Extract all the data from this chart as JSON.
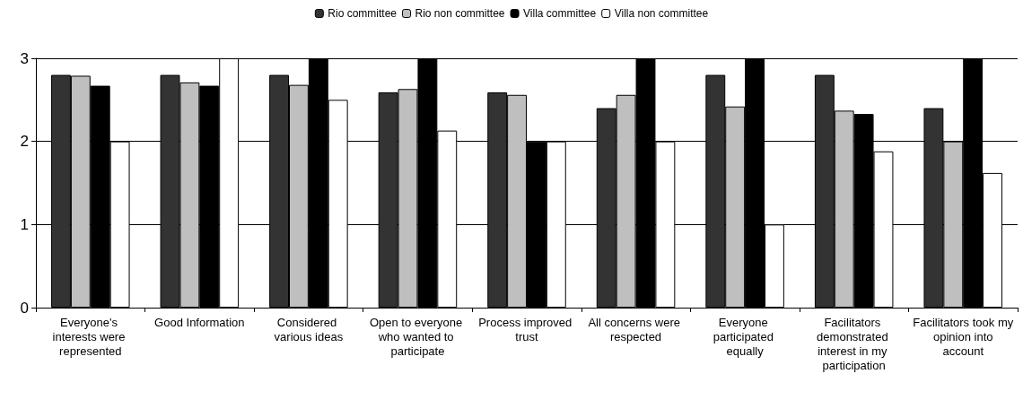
{
  "chart_data": {
    "type": "bar",
    "categories": [
      "Everyone's interests were represented",
      "Good Information",
      "Considered various ideas",
      "Open to everyone who wanted to participate",
      "Process improved trust",
      "All concerns were respected",
      "Everyone participated equally",
      "Facilitators demonstrated interest in my participation",
      "Facilitators took my opinion into account"
    ],
    "series": [
      {
        "name": "Rio committee",
        "color": "#333333",
        "values": [
          2.8,
          2.8,
          2.8,
          2.59,
          2.59,
          2.4,
          2.8,
          2.8,
          2.4
        ]
      },
      {
        "name": "Rio non committee",
        "color": "#bfbfbf",
        "values": [
          2.79,
          2.71,
          2.68,
          2.63,
          2.56,
          2.56,
          2.42,
          2.37,
          2.0
        ]
      },
      {
        "name": "Villa committee",
        "color": "#000000",
        "values": [
          2.67,
          2.67,
          3,
          3,
          2,
          3,
          3,
          2.33,
          3
        ]
      },
      {
        "name": "Villa non committee",
        "color": "#ffffff",
        "values": [
          2,
          3,
          2.5,
          2.13,
          2,
          2,
          1,
          1.88,
          1.62
        ]
      }
    ],
    "ylim": [
      0,
      3
    ],
    "yticks": [
      0,
      1,
      2,
      3
    ],
    "grid": "y",
    "legend": "top"
  }
}
